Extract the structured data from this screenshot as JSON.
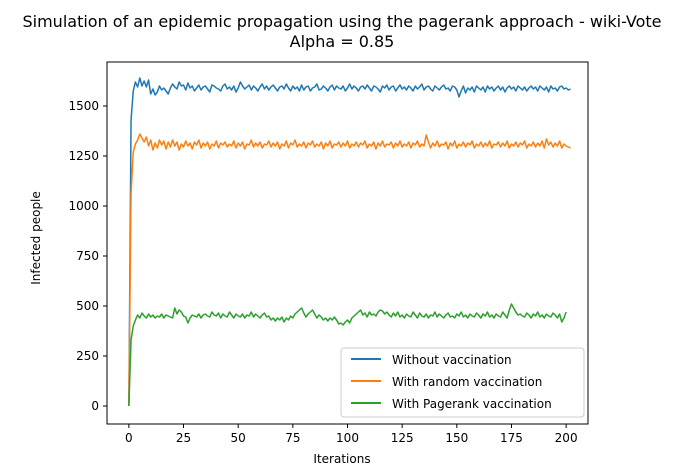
{
  "chart_data": {
    "type": "line",
    "title": "Simulation of an epidemic propagation using the pagerank approach - wiki-Vote",
    "subtitle": "Alpha = 0.85",
    "xlabel": "Iterations",
    "ylabel": "Infected people",
    "xlim": [
      -10,
      210
    ],
    "ylim": [
      -90,
      1720
    ],
    "xticks": [
      0,
      25,
      50,
      75,
      100,
      125,
      150,
      175,
      200
    ],
    "xtick_labels": [
      "0",
      "25",
      "50",
      "75",
      "100",
      "125",
      "150",
      "175",
      "200"
    ],
    "yticks": [
      0,
      250,
      500,
      750,
      1000,
      1250,
      1500
    ],
    "ytick_labels": [
      "0",
      "250",
      "500",
      "750",
      "1000",
      "1250",
      "1500"
    ],
    "grid": false,
    "legend_position": "lower right",
    "series": [
      {
        "name": "Without vaccination",
        "color": "#1f77b4",
        "x0": 0,
        "dx": 1,
        "values": [
          0,
          1430,
          1575,
          1620,
          1595,
          1640,
          1600,
          1625,
          1595,
          1630,
          1560,
          1585,
          1555,
          1570,
          1600,
          1580,
          1590,
          1575,
          1560,
          1590,
          1610,
          1595,
          1585,
          1620,
          1600,
          1605,
          1580,
          1615,
          1590,
          1600,
          1575,
          1590,
          1605,
          1580,
          1595,
          1600,
          1585,
          1570,
          1605,
          1600,
          1590,
          1585,
          1575,
          1600,
          1610,
          1585,
          1595,
          1580,
          1600,
          1570,
          1590,
          1620,
          1600,
          1585,
          1595,
          1605,
          1580,
          1600,
          1590,
          1575,
          1595,
          1610,
          1585,
          1600,
          1580,
          1595,
          1605,
          1590,
          1575,
          1595,
          1600,
          1585,
          1610,
          1590,
          1575,
          1600,
          1585,
          1595,
          1575,
          1605,
          1580,
          1595,
          1600,
          1575,
          1590,
          1595,
          1610,
          1580,
          1585,
          1600,
          1590,
          1575,
          1595,
          1605,
          1580,
          1600,
          1590,
          1585,
          1600,
          1575,
          1590,
          1610,
          1585,
          1600,
          1590,
          1575,
          1595,
          1600,
          1585,
          1605,
          1590,
          1575,
          1600,
          1595,
          1585,
          1570,
          1600,
          1590,
          1605,
          1580,
          1595,
          1600,
          1575,
          1590,
          1605,
          1585,
          1595,
          1580,
          1600,
          1590,
          1575,
          1600,
          1585,
          1595,
          1610,
          1580,
          1595,
          1600,
          1585,
          1575,
          1600,
          1590,
          1580,
          1595,
          1605,
          1585,
          1590,
          1575,
          1600,
          1595,
          1580,
          1545,
          1575,
          1600,
          1565,
          1590,
          1580,
          1595,
          1570,
          1600,
          1590,
          1580,
          1595,
          1570,
          1600,
          1585,
          1595,
          1575,
          1590,
          1600,
          1580,
          1595,
          1570,
          1590,
          1600,
          1585,
          1595,
          1575,
          1600,
          1590,
          1580,
          1595,
          1575,
          1590,
          1600,
          1585,
          1595,
          1575,
          1600,
          1590,
          1580,
          1595,
          1570,
          1600,
          1585,
          1590,
          1575,
          1595,
          1600,
          1585,
          1590,
          1580,
          1585
        ]
      },
      {
        "name": "With random vaccination",
        "color": "#ff7f0e",
        "x0": 0,
        "dx": 1,
        "values": [
          0,
          1060,
          1270,
          1310,
          1330,
          1360,
          1340,
          1320,
          1345,
          1300,
          1330,
          1280,
          1315,
          1290,
          1330,
          1305,
          1325,
          1285,
          1320,
          1295,
          1330,
          1300,
          1320,
          1280,
          1310,
          1295,
          1325,
          1300,
          1315,
          1285,
          1320,
          1305,
          1330,
          1290,
          1315,
          1300,
          1320,
          1285,
          1310,
          1300,
          1325,
          1290,
          1315,
          1305,
          1320,
          1295,
          1310,
          1300,
          1325,
          1290,
          1315,
          1300,
          1320,
          1285,
          1310,
          1305,
          1330,
          1295,
          1315,
          1300,
          1320,
          1290,
          1310,
          1305,
          1325,
          1295,
          1315,
          1300,
          1320,
          1285,
          1310,
          1300,
          1325,
          1290,
          1315,
          1305,
          1330,
          1295,
          1310,
          1300,
          1320,
          1290,
          1315,
          1305,
          1325,
          1295,
          1310,
          1300,
          1320,
          1285,
          1315,
          1300,
          1325,
          1290,
          1310,
          1305,
          1320,
          1295,
          1315,
          1300,
          1325,
          1290,
          1310,
          1300,
          1320,
          1295,
          1315,
          1305,
          1325,
          1290,
          1310,
          1300,
          1320,
          1285,
          1315,
          1300,
          1325,
          1295,
          1310,
          1305,
          1320,
          1290,
          1315,
          1300,
          1325,
          1295,
          1310,
          1300,
          1320,
          1290,
          1315,
          1305,
          1325,
          1295,
          1310,
          1300,
          1355,
          1320,
          1290,
          1315,
          1300,
          1325,
          1295,
          1310,
          1305,
          1320,
          1285,
          1315,
          1300,
          1325,
          1290,
          1310,
          1300,
          1320,
          1295,
          1315,
          1305,
          1325,
          1290,
          1310,
          1300,
          1320,
          1295,
          1315,
          1300,
          1325,
          1290,
          1310,
          1305,
          1320,
          1295,
          1315,
          1300,
          1325,
          1290,
          1310,
          1300,
          1320,
          1295,
          1315,
          1305,
          1325,
          1290,
          1310,
          1300,
          1320,
          1295,
          1315,
          1300,
          1325,
          1290,
          1335,
          1305,
          1320,
          1295,
          1315,
          1300,
          1325,
          1290,
          1310,
          1300,
          1295,
          1290
        ]
      },
      {
        "name": "With Pagerank vaccination",
        "color": "#2ca02c",
        "x0": 0,
        "dx": 1,
        "values": [
          0,
          330,
          400,
          430,
          455,
          440,
          465,
          450,
          440,
          460,
          445,
          455,
          440,
          450,
          445,
          460,
          440,
          455,
          450,
          445,
          440,
          490,
          460,
          480,
          470,
          450,
          445,
          415,
          440,
          455,
          450,
          445,
          460,
          440,
          455,
          460,
          450,
          445,
          470,
          455,
          450,
          465,
          440,
          460,
          450,
          445,
          470,
          455,
          440,
          460,
          450,
          445,
          460,
          440,
          455,
          450,
          470,
          445,
          460,
          450,
          440,
          455,
          465,
          445,
          450,
          430,
          440,
          425,
          440,
          430,
          445,
          420,
          440,
          430,
          450,
          440,
          460,
          470,
          480,
          490,
          465,
          445,
          460,
          470,
          480,
          460,
          440,
          455,
          445,
          430,
          440,
          425,
          440,
          430,
          445,
          430,
          410,
          415,
          405,
          420,
          430,
          415,
          440,
          450,
          460,
          470,
          480,
          455,
          465,
          445,
          470,
          455,
          460,
          450,
          470,
          480,
          475,
          460,
          470,
          455,
          445,
          465,
          450,
          470,
          445,
          455,
          440,
          460,
          450,
          445,
          470,
          455,
          440,
          465,
          450,
          445,
          460,
          440,
          455,
          450,
          470,
          445,
          460,
          450,
          440,
          455,
          465,
          445,
          450,
          440,
          460,
          450,
          470,
          445,
          455,
          440,
          460,
          450,
          445,
          465,
          455,
          440,
          460,
          450,
          470,
          445,
          455,
          440,
          460,
          450,
          445,
          470,
          455,
          440,
          480,
          510,
          490,
          470,
          455,
          460,
          450,
          445,
          465,
          455,
          440,
          460,
          450,
          470,
          445,
          455,
          440,
          460,
          450,
          445,
          465,
          455,
          440,
          460,
          420,
          440,
          470
        ]
      }
    ]
  }
}
